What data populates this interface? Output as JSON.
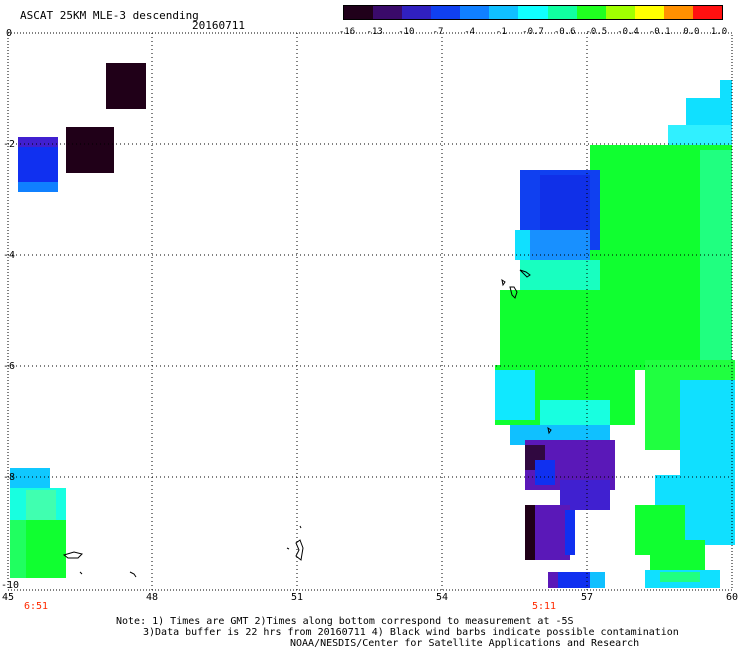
{
  "header": {
    "title": "ASCAT 25KM MLE-3 descending",
    "date": "20160711"
  },
  "colorbar": {
    "labels": [
      "-16",
      "-13",
      "-10",
      "-7",
      "-4",
      "-1",
      "-0.7",
      "-0.6",
      "-0.5",
      "-0.4",
      "-0.1",
      "0.0",
      "1.0"
    ],
    "colors": [
      "#20001a",
      "#3a0a6a",
      "#3020c0",
      "#1040f0",
      "#1080ff",
      "#10c0ff",
      "#10ffff",
      "#10ffa0",
      "#20ff20",
      "#a0ff00",
      "#ffff00",
      "#ff9000",
      "#ff1010"
    ]
  },
  "axes": {
    "x_ticks": [
      "45",
      "48",
      "51",
      "54",
      "57",
      "60"
    ],
    "y_ticks": [
      "0",
      "-2",
      "-4",
      "-6",
      "-8",
      "-10"
    ],
    "time_labels": [
      "6:51",
      "5:11"
    ]
  },
  "notes": {
    "line1": "Note: 1) Times are GMT 2)Times along bottom correspond to measurement at -5S",
    "line2": "3)Data buffer is 22 hrs from 20160711 4) Black wind barbs indicate possible contamination",
    "line3": "NOAA/NESDIS/Center for Satellite Applications and Research"
  },
  "colors": {
    "dark": "#200018",
    "purple": "#5a18b8",
    "violet": "#4020d0",
    "blue": "#1030f0",
    "cyan": "#10e0ff",
    "teal": "#18ffe0",
    "green": "#10ff30",
    "light_green": "#40ff80",
    "black": "#000000",
    "grid": "#000000",
    "accent_red": "#ff2a00"
  }
}
